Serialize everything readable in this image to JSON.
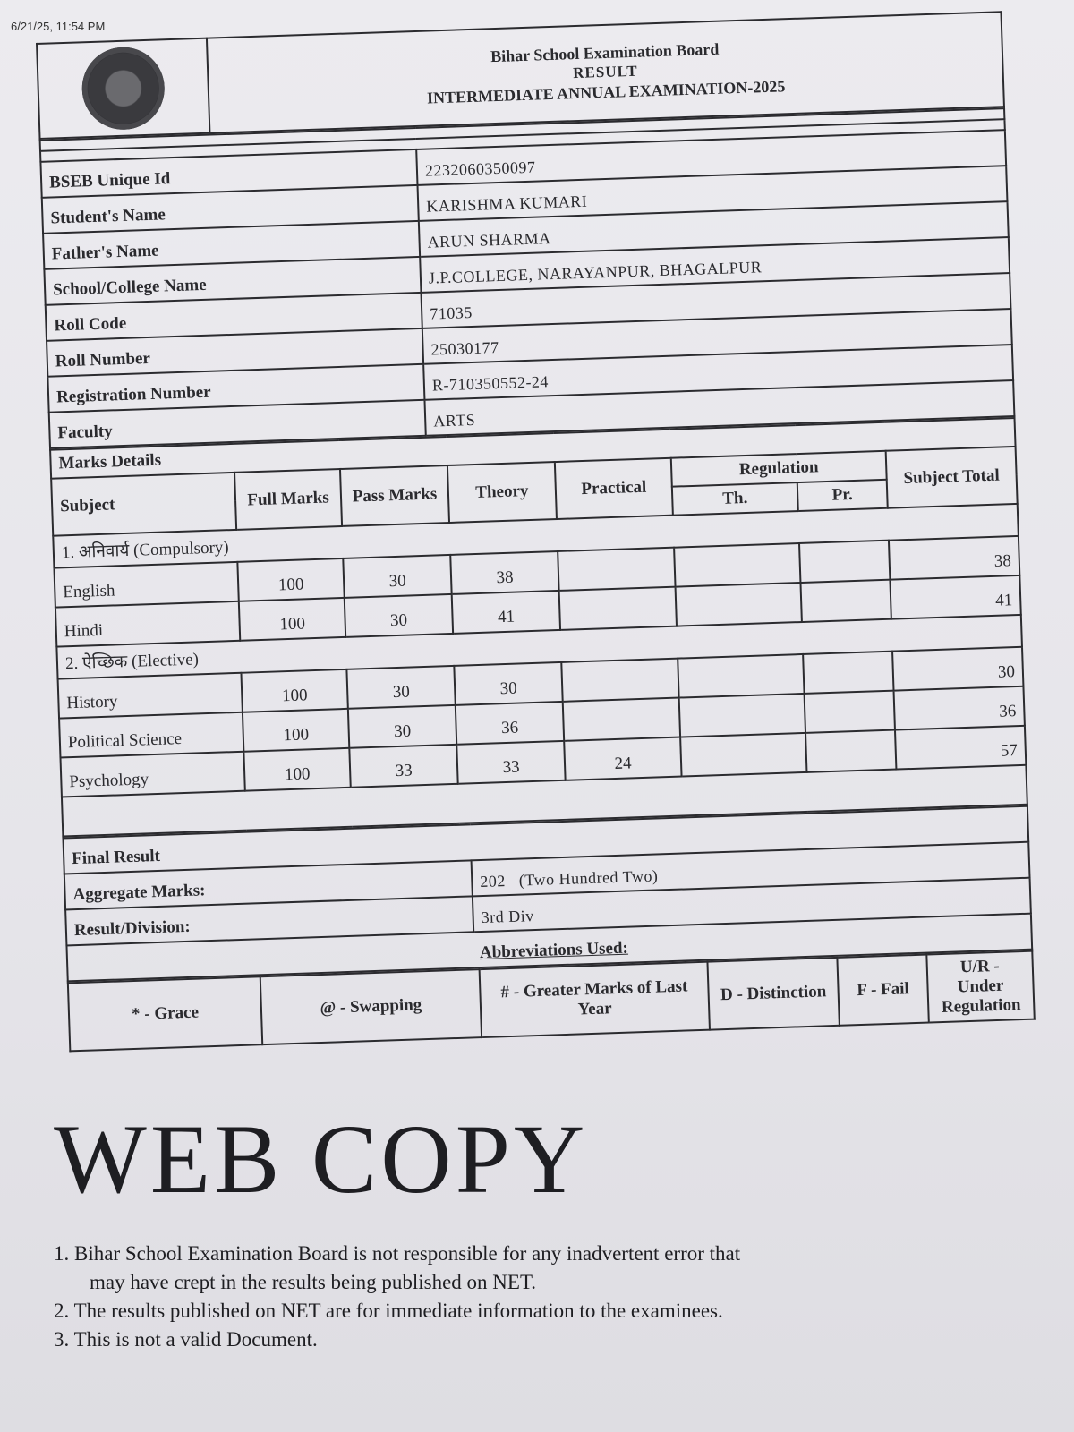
{
  "timestamp": "6/21/25, 11:54 PM",
  "header": {
    "board": "Bihar School Examination Board",
    "result": "RESULT",
    "exam": "INTERMEDIATE ANNUAL EXAMINATION-2025"
  },
  "info": [
    {
      "label": "BSEB Unique Id",
      "value": "2232060350097"
    },
    {
      "label": "Student's Name",
      "value": "KARISHMA KUMARI"
    },
    {
      "label": "Father's Name",
      "value": "ARUN SHARMA"
    },
    {
      "label": "School/College Name",
      "value": "J.P.COLLEGE, NARAYANPUR, BHAGALPUR"
    },
    {
      "label": "Roll Code",
      "value": "71035"
    },
    {
      "label": "Roll Number",
      "value": "25030177"
    },
    {
      "label": "Registration Number",
      "value": "R-710350552-24"
    },
    {
      "label": "Faculty",
      "value": "ARTS"
    }
  ],
  "marks": {
    "title": "Marks Details",
    "headers": {
      "subject": "Subject",
      "full": "Full Marks",
      "pass": "Pass Marks",
      "theory": "Theory",
      "practical": "Practical",
      "regulation": "Regulation",
      "reg_th": "Th.",
      "reg_pr": "Pr.",
      "total": "Subject Total"
    },
    "groups": [
      {
        "name": "1. अनिवार्य (Compulsory)",
        "subjects": [
          {
            "name": "English",
            "full": "100",
            "pass": "30",
            "theory": "38",
            "practical": "",
            "total": "38"
          },
          {
            "name": "Hindi",
            "full": "100",
            "pass": "30",
            "theory": "41",
            "practical": "",
            "total": "41"
          }
        ]
      },
      {
        "name": "2. ऐच्छिक (Elective)",
        "subjects": [
          {
            "name": "History",
            "full": "100",
            "pass": "30",
            "theory": "30",
            "practical": "",
            "total": "30"
          },
          {
            "name": "Political Science",
            "full": "100",
            "pass": "30",
            "theory": "36",
            "practical": "",
            "total": "36"
          },
          {
            "name": "Psychology",
            "full": "100",
            "pass": "33",
            "theory": "33",
            "practical": "24",
            "total": "57"
          }
        ]
      }
    ]
  },
  "final": {
    "title": "Final Result",
    "aggregate_label": "Aggregate Marks:",
    "aggregate_value": "202",
    "aggregate_words": "(Two Hundred Two)",
    "division_label": "Result/Division:",
    "division_value": "3rd Div"
  },
  "abbreviations": {
    "title": "Abbreviations Used:",
    "items": [
      "* - Grace",
      "@ - Swapping",
      "# - Greater Marks of Last Year",
      "D - Distinction",
      "F - Fail",
      "U/R - Under Regulation"
    ]
  },
  "watermark": {
    "big": "WEB COPY",
    "lines": [
      "1. Bihar School Examination Board is not responsible for any inadvertent error that",
      "may have crept in the results being published on NET.",
      "2. The results published on NET are for immediate information to the examinees.",
      "3. This is not a valid Document."
    ]
  }
}
